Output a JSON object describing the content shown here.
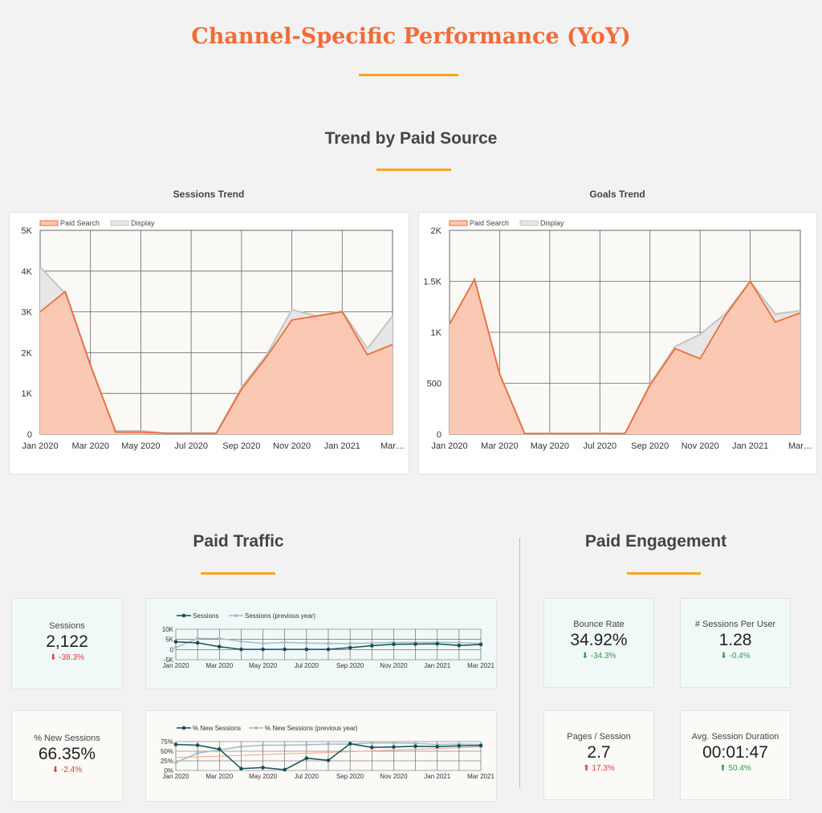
{
  "title": "Channel-Specific Performance (YoY)",
  "trend_section": "Trend by Paid Source",
  "traffic_section": "Paid Traffic",
  "engagement_section": "Paid Engagement",
  "months": [
    "Jan 2020",
    "Feb 2020",
    "Mar 2020",
    "Apr 2020",
    "May 2020",
    "Jun 2020",
    "Jul 2020",
    "Aug 2020",
    "Sep 2020",
    "Oct 2020",
    "Nov 2020",
    "Dec 2020",
    "Jan 2021",
    "Feb 2021",
    "Mar 2021"
  ],
  "colors": {
    "paid": "#f26b38",
    "paid_fill": "#fbc9b3",
    "display": "#c4c4c4",
    "display_fill": "#e6e6e6",
    "sessions": "#13505b",
    "prev": "#9fbfc5",
    "trend": "#f4a48a",
    "accent": "#f26b38",
    "rule": "#f5a623"
  },
  "chart_data": [
    {
      "type": "area",
      "title": "Sessions Trend",
      "x_tick_labels": [
        "Jan 2020",
        "Mar 2020",
        "May 2020",
        "Jul 2020",
        "Sep 2020",
        "Nov 2020",
        "Jan 2021",
        "Mar…"
      ],
      "y_tick_labels": [
        "0",
        "1K",
        "2K",
        "3K",
        "4K",
        "5K"
      ],
      "ylim": [
        0,
        5000
      ],
      "grid": true,
      "legend_position": "top-left",
      "series": [
        {
          "name": "Paid Search",
          "values": [
            3000,
            3500,
            1700,
            50,
            50,
            20,
            20,
            20,
            1100,
            1900,
            2800,
            2900,
            3000,
            1950,
            2200
          ]
        },
        {
          "name": "Display",
          "values": [
            4100,
            3450,
            1650,
            80,
            80,
            30,
            30,
            30,
            1150,
            1950,
            3050,
            2900,
            3020,
            2100,
            2900
          ]
        }
      ]
    },
    {
      "type": "area",
      "title": "Goals Trend",
      "x_tick_labels": [
        "Jan 2020",
        "Mar 2020",
        "May 2020",
        "Jul 2020",
        "Sep 2020",
        "Nov 2020",
        "Jan 2021",
        "Mar…"
      ],
      "y_tick_labels": [
        "0",
        "500",
        "1K",
        "1.5K",
        "2K"
      ],
      "ylim": [
        0,
        2000
      ],
      "grid": true,
      "legend_position": "top-left",
      "series": [
        {
          "name": "Paid Search",
          "values": [
            1080,
            1520,
            590,
            5,
            5,
            5,
            5,
            5,
            480,
            840,
            740,
            1160,
            1500,
            1100,
            1190
          ]
        },
        {
          "name": "Display",
          "values": [
            1080,
            1520,
            590,
            8,
            8,
            8,
            8,
            8,
            490,
            860,
            980,
            1180,
            1500,
            1180,
            1210
          ]
        }
      ]
    },
    {
      "type": "line",
      "x_tick_labels": [
        "Jan 2020",
        "Mar 2020",
        "May 2020",
        "Jul 2020",
        "Sep 2020",
        "Nov 2020",
        "Jan 2021",
        "Mar 2021"
      ],
      "y_tick_labels": [
        "-5K",
        "0",
        "5K",
        "10K"
      ],
      "ylim": [
        -5000,
        10000
      ],
      "grid": true,
      "legend_position": "top-left",
      "series": [
        {
          "name": "Sessions",
          "values": [
            3800,
            3300,
            1400,
            100,
            100,
            100,
            100,
            100,
            900,
            1900,
            2600,
            2700,
            2800,
            2000,
            2500
          ]
        },
        {
          "name": "Sessions (previous year)",
          "values": [
            1000,
            5500,
            5400,
            4000,
            3000,
            3500,
            3200,
            3000,
            3000,
            3200,
            3500,
            3500,
            3600,
            3400,
            3000
          ]
        }
      ]
    },
    {
      "type": "line",
      "x_tick_labels": [
        "Jan 2020",
        "Mar 2020",
        "May 2020",
        "Jul 2020",
        "Sep 2020",
        "Nov 2020",
        "Jan 2021",
        "Mar 2021"
      ],
      "y_tick_labels": [
        "0%",
        "25%",
        "50%",
        "75%"
      ],
      "ylim": [
        0,
        80
      ],
      "grid": true,
      "legend_position": "top-left",
      "series": [
        {
          "name": "% New Sessions",
          "values": [
            72,
            70,
            59,
            5,
            8,
            2,
            34,
            28,
            74,
            64,
            65,
            67,
            66,
            68,
            69
          ]
        },
        {
          "name": "% New Sessions (previous year)",
          "values": [
            22,
            48,
            57,
            66,
            70,
            70,
            71,
            73,
            73,
            76,
            76,
            75,
            72,
            73,
            72
          ]
        }
      ]
    }
  ],
  "kpis": {
    "sessions": {
      "label": "Sessions",
      "value": "2,122",
      "change": "-38.3%"
    },
    "new_sessions": {
      "label": "% New Sessions",
      "value": "66.35%",
      "change": "-2.4%"
    },
    "bounce": {
      "label": "Bounce Rate",
      "value": "34.92%",
      "change": "-34.3%"
    },
    "spu": {
      "label": "# Sessions Per User",
      "value": "1.28",
      "change": "-0.4%"
    },
    "pps": {
      "label": "Pages / Session",
      "value": "2.7",
      "change": "17.3%"
    },
    "asd": {
      "label": "Avg. Session Duration",
      "value": "00:01:47",
      "change": "50.4%"
    }
  }
}
